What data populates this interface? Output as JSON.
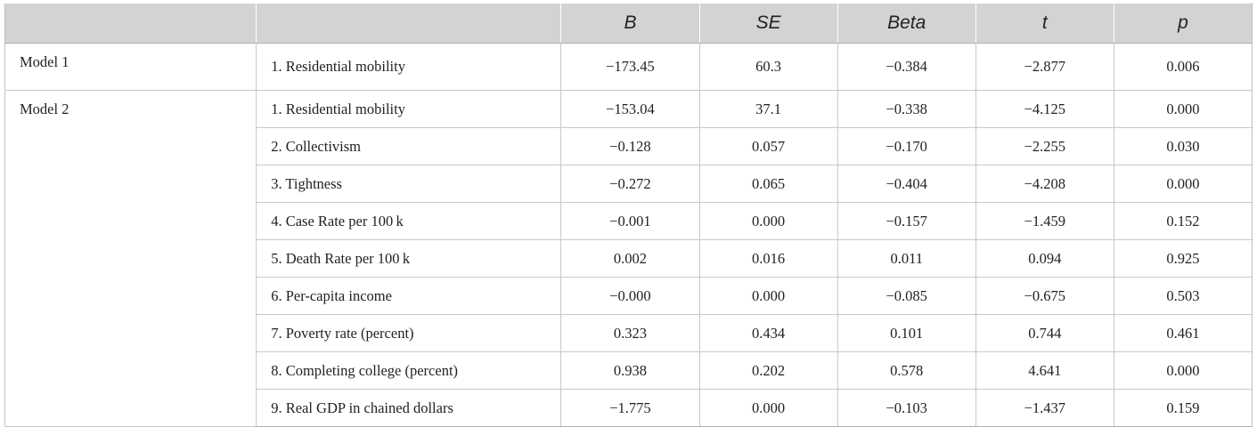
{
  "table": {
    "headers": [
      "",
      "",
      "B",
      "SE",
      "Beta",
      "t",
      "p"
    ],
    "groups": [
      {
        "model": "Model 1",
        "rows": [
          {
            "variable": "1. Residential mobility",
            "B": "−173.45",
            "SE": "60.3",
            "Beta": "−0.384",
            "t": "−2.877",
            "p": "0.006"
          }
        ]
      },
      {
        "model": "Model 2",
        "rows": [
          {
            "variable": "1. Residential mobility",
            "B": "−153.04",
            "SE": "37.1",
            "Beta": "−0.338",
            "t": "−4.125",
            "p": "0.000"
          },
          {
            "variable": "2. Collectivism",
            "B": "−0.128",
            "SE": "0.057",
            "Beta": "−0.170",
            "t": "−2.255",
            "p": "0.030"
          },
          {
            "variable": "3. Tightness",
            "B": "−0.272",
            "SE": "0.065",
            "Beta": "−0.404",
            "t": "−4.208",
            "p": "0.000"
          },
          {
            "variable": "4. Case Rate per 100 k",
            "B": "−0.001",
            "SE": "0.000",
            "Beta": "−0.157",
            "t": "−1.459",
            "p": "0.152"
          },
          {
            "variable": "5. Death Rate per 100 k",
            "B": "0.002",
            "SE": "0.016",
            "Beta": "0.011",
            "t": "0.094",
            "p": "0.925"
          },
          {
            "variable": "6. Per-capita income",
            "B": "−0.000",
            "SE": "0.000",
            "Beta": "−0.085",
            "t": "−0.675",
            "p": "0.503"
          },
          {
            "variable": "7. Poverty rate (percent)",
            "B": "0.323",
            "SE": "0.434",
            "Beta": "0.101",
            "t": "0.744",
            "p": "0.461"
          },
          {
            "variable": "8. Completing college (percent)",
            "B": "0.938",
            "SE": "0.202",
            "Beta": "0.578",
            "t": "4.641",
            "p": "0.000"
          },
          {
            "variable": "9. Real GDP in chained dollars",
            "B": "−1.775",
            "SE": "0.000",
            "Beta": "−0.103",
            "t": "−1.437",
            "p": "0.159"
          }
        ]
      }
    ]
  }
}
